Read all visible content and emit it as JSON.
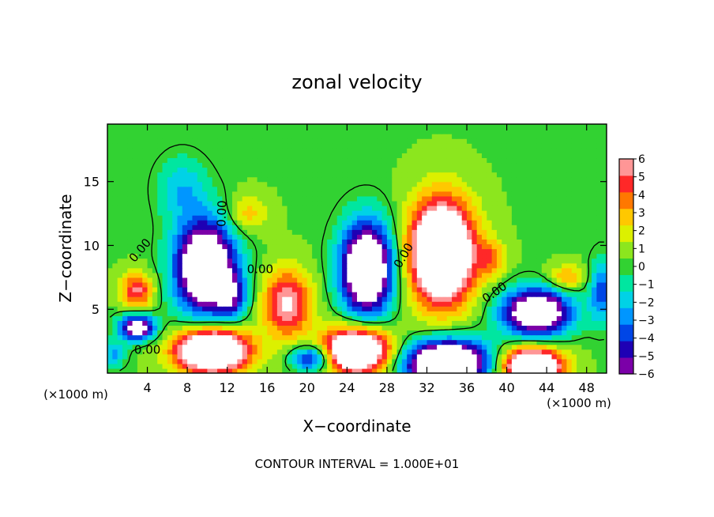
{
  "chart_data": {
    "type": "heatmap",
    "title": "zonal velocity",
    "xlabel": "X−coordinate",
    "ylabel": "Z−coordinate",
    "x_unit_label": "(×1000 m)",
    "z_unit_label": "(×1000 m)",
    "footer": "CONTOUR INTERVAL = 1.000E+01",
    "xlim": [
      0,
      50
    ],
    "ylim": [
      0,
      19.5
    ],
    "x_ticks": [
      4,
      8,
      12,
      16,
      20,
      24,
      28,
      32,
      36,
      40,
      44,
      48
    ],
    "y_ticks": [
      5,
      10,
      15
    ],
    "colorbar": {
      "min": -6,
      "max": 6,
      "ticks": [
        6,
        5,
        4,
        3,
        2,
        1,
        0,
        -1,
        -2,
        -3,
        -4,
        -5,
        -6
      ],
      "colors": [
        "#7b00a8",
        "#1e00b4",
        "#0046e6",
        "#0096ff",
        "#00d2e6",
        "#00e6a0",
        "#32d232",
        "#8ce61e",
        "#dcf000",
        "#ffc800",
        "#ff7800",
        "#ff2828",
        "#ff9696"
      ]
    },
    "contour_label": "0.00",
    "features": [
      {
        "kind": "neg",
        "x": 9.8,
        "z": 8.3,
        "rx": 3.0,
        "rz": 3.6,
        "amp": -11
      },
      {
        "kind": "neg",
        "x": 26.0,
        "z": 8.2,
        "rx": 2.6,
        "rz": 3.6,
        "amp": -11
      },
      {
        "kind": "neg",
        "x": 43.0,
        "z": 4.8,
        "rx": 3.4,
        "rz": 1.8,
        "amp": -10
      },
      {
        "kind": "neg",
        "x": 34.0,
        "z": 0.8,
        "rx": 4.2,
        "rz": 1.8,
        "amp": -12
      },
      {
        "kind": "neg",
        "x": 3.0,
        "z": 3.6,
        "rx": 1.8,
        "rz": 1.0,
        "amp": -8
      },
      {
        "kind": "neg",
        "x": 20.5,
        "z": 1.2,
        "rx": 2.0,
        "rz": 1.0,
        "amp": -6
      },
      {
        "kind": "neg",
        "x": 7.5,
        "z": 14.5,
        "rx": 2.5,
        "rz": 2.5,
        "amp": -2.5
      },
      {
        "kind": "neg",
        "x": 12.5,
        "z": 6.0,
        "rx": 1.6,
        "rz": 1.8,
        "amp": -4
      },
      {
        "kind": "neg",
        "x": 49.5,
        "z": 6.5,
        "rx": 1.2,
        "rz": 2.5,
        "amp": -4
      },
      {
        "kind": "neg",
        "x": 0.6,
        "z": 1.5,
        "rx": 1.2,
        "rz": 1.0,
        "amp": -3
      },
      {
        "kind": "pos",
        "x": 33.5,
        "z": 9.5,
        "rx": 3.2,
        "rz": 4.0,
        "amp": 12
      },
      {
        "kind": "pos",
        "x": 10.5,
        "z": 1.8,
        "rx": 3.6,
        "rz": 1.7,
        "amp": 12
      },
      {
        "kind": "pos",
        "x": 25.0,
        "z": 1.8,
        "rx": 3.4,
        "rz": 1.8,
        "amp": 11
      },
      {
        "kind": "pos",
        "x": 42.5,
        "z": 0.6,
        "rx": 3.0,
        "rz": 1.4,
        "amp": 11
      },
      {
        "kind": "pos",
        "x": 18.0,
        "z": 5.5,
        "rx": 2.4,
        "rz": 2.6,
        "amp": 6
      },
      {
        "kind": "pos",
        "x": 3.0,
        "z": 6.5,
        "rx": 1.6,
        "rz": 1.4,
        "amp": 5
      },
      {
        "kind": "pos",
        "x": 14.0,
        "z": 12.5,
        "rx": 2.0,
        "rz": 1.5,
        "amp": 2.5
      },
      {
        "kind": "pos",
        "x": 38.5,
        "z": 9.0,
        "rx": 1.5,
        "rz": 1.4,
        "amp": 3
      },
      {
        "kind": "pos",
        "x": 46.0,
        "z": 7.5,
        "rx": 1.8,
        "rz": 1.0,
        "amp": 3
      }
    ]
  }
}
